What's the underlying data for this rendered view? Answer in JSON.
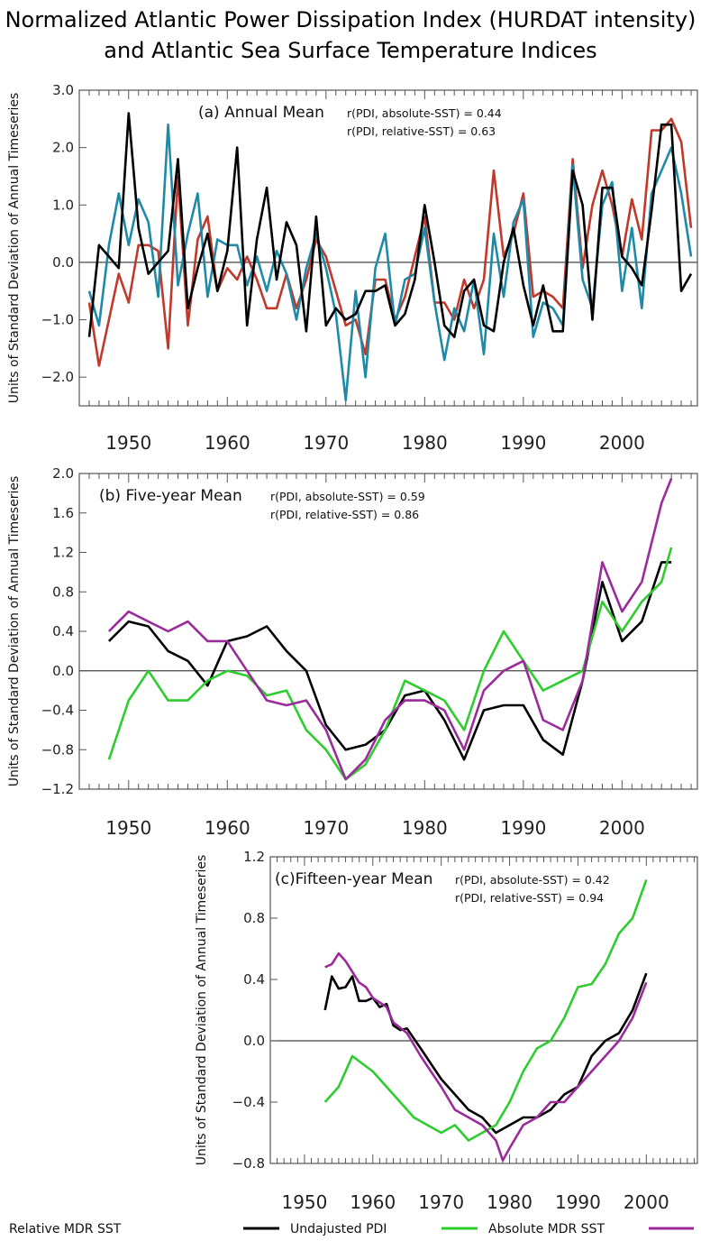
{
  "title": {
    "line1": "Normalized Atlantic Power Dissipation Index (HURDAT intensity)",
    "line2": "and Atlantic Sea Surface Temperature Indices"
  },
  "ylabel": "Units of Standard Deviation of Annual Timeseries",
  "legend": [
    {
      "label": "Undajusted PDI",
      "color": "#000000"
    },
    {
      "label": "Absolute MDR SST",
      "color": "#2ecc2e"
    },
    {
      "label": "Relative MDR SST",
      "color": "#9b2a9b"
    }
  ],
  "chart_data": [
    {
      "type": "line",
      "panel": "(a) Annual Mean",
      "corr1": "r(PDI, absolute-SST) = 0.44",
      "corr2": "r(PDI, relative-SST) = 0.63",
      "xlim": [
        1945,
        2008
      ],
      "ylim": [
        -2.5,
        3.0
      ],
      "yticks": [
        "3.0",
        "2.0",
        "1.0",
        "0.0",
        "−1.0",
        "−2.0"
      ],
      "ytick_values": [
        3,
        2,
        1,
        0,
        -1,
        -2
      ],
      "xticks": [
        "1950",
        "1960",
        "1970",
        "1980",
        "1990",
        "2000"
      ],
      "xtick_values": [
        1950,
        1960,
        1970,
        1980,
        1990,
        2000
      ],
      "x": [
        1946,
        1947,
        1948,
        1949,
        1950,
        1951,
        1952,
        1953,
        1954,
        1955,
        1956,
        1957,
        1958,
        1959,
        1960,
        1961,
        1962,
        1963,
        1964,
        1965,
        1966,
        1967,
        1968,
        1969,
        1970,
        1971,
        1972,
        1973,
        1974,
        1975,
        1976,
        1977,
        1978,
        1979,
        1980,
        1981,
        1982,
        1983,
        1984,
        1985,
        1986,
        1987,
        1988,
        1989,
        1990,
        1991,
        1992,
        1993,
        1994,
        1995,
        1996,
        1997,
        1998,
        1999,
        2000,
        2001,
        2002,
        2003,
        2004,
        2005,
        2006,
        2007
      ],
      "series": [
        {
          "color": "#c0392b",
          "values": [
            -0.7,
            -1.8,
            -1.0,
            -0.2,
            -0.7,
            0.3,
            0.3,
            0.2,
            -1.5,
            1.5,
            -1.1,
            0.4,
            0.8,
            -0.5,
            -0.1,
            -0.3,
            0.1,
            -0.3,
            -0.8,
            -0.8,
            -0.2,
            -0.8,
            -0.3,
            0.4,
            0.1,
            -0.5,
            -1.1,
            -1.0,
            -1.6,
            -0.3,
            -0.3,
            -1.0,
            -0.6,
            0.1,
            0.8,
            -0.7,
            -0.7,
            -1.0,
            -0.3,
            -0.8,
            -0.3,
            1.6,
            0.1,
            0.5,
            1.2,
            -0.6,
            -0.5,
            -0.6,
            -0.8,
            1.8,
            -0.1,
            1.0,
            1.6,
            1.0,
            0.1,
            1.1,
            0.4,
            2.3,
            2.3,
            2.5,
            2.1,
            0.6
          ]
        },
        {
          "color": "#1f8aa8",
          "values": [
            -0.5,
            -1.1,
            0.3,
            1.2,
            0.3,
            1.1,
            0.7,
            -0.6,
            2.4,
            -0.4,
            0.5,
            1.2,
            -0.6,
            0.4,
            0.3,
            0.3,
            -0.4,
            0.1,
            -0.5,
            0.2,
            -0.2,
            -1.0,
            -0.1,
            0.5,
            -0.1,
            -0.9,
            -2.4,
            -0.5,
            -2.0,
            -0.1,
            0.5,
            -1.1,
            -0.3,
            -0.2,
            0.6,
            -0.7,
            -1.7,
            -0.8,
            -1.2,
            -0.3,
            -1.6,
            0.5,
            -0.6,
            0.7,
            1.1,
            -1.3,
            -0.7,
            -0.8,
            -1.1,
            1.7,
            -0.3,
            -0.8,
            1.0,
            1.4,
            -0.5,
            0.6,
            -0.8,
            1.2,
            1.6,
            2.0,
            1.2,
            0.1
          ]
        },
        {
          "color": "#000000",
          "values": [
            -1.3,
            0.3,
            0.1,
            -0.1,
            2.6,
            0.6,
            -0.2,
            0.0,
            0.2,
            1.8,
            -0.8,
            -0.1,
            0.5,
            -0.5,
            0.2,
            2.0,
            -1.1,
            0.4,
            1.3,
            -0.3,
            0.7,
            0.3,
            -1.2,
            0.8,
            -1.1,
            -0.8,
            -1.0,
            -0.9,
            -0.5,
            -0.5,
            -0.4,
            -1.1,
            -0.9,
            -0.3,
            1.0,
            0.0,
            -1.1,
            -1.3,
            -0.5,
            -0.3,
            -1.1,
            -1.2,
            0.0,
            0.6,
            -0.4,
            -1.1,
            -0.4,
            -1.2,
            -1.2,
            1.6,
            1.0,
            -1.0,
            1.3,
            1.3,
            0.1,
            -0.1,
            -0.4,
            0.9,
            2.4,
            2.4,
            -0.5,
            -0.2
          ]
        }
      ]
    },
    {
      "type": "line",
      "panel": "(b) Five-year Mean",
      "corr1": "r(PDI, absolute-SST) = 0.59",
      "corr2": "r(PDI, relative-SST) = 0.86",
      "xlim": [
        1945,
        2008
      ],
      "ylim": [
        -1.2,
        2.0
      ],
      "yticks": [
        "2.0",
        "1.6",
        "1.2",
        "0.8",
        "0.4",
        "0.0",
        "−0.4",
        "−0.8",
        "−1.2"
      ],
      "ytick_values": [
        2.0,
        1.6,
        1.2,
        0.8,
        0.4,
        0.0,
        -0.4,
        -0.8,
        -1.2
      ],
      "xticks": [
        "1950",
        "1960",
        "1970",
        "1980",
        "1990",
        "2000"
      ],
      "xtick_values": [
        1950,
        1960,
        1970,
        1980,
        1990,
        2000
      ],
      "series": [
        {
          "name": "Undajusted PDI",
          "color": "#000000",
          "x": [
            1948,
            1950,
            1952,
            1954,
            1956,
            1958,
            1960,
            1962,
            1964,
            1966,
            1968,
            1970,
            1972,
            1974,
            1976,
            1978,
            1980,
            1982,
            1984,
            1986,
            1988,
            1990,
            1992,
            1994,
            1996,
            1998,
            2000,
            2002,
            2004,
            2005
          ],
          "values": [
            0.3,
            0.5,
            0.45,
            0.2,
            0.1,
            -0.15,
            0.3,
            0.35,
            0.45,
            0.2,
            0.0,
            -0.55,
            -0.8,
            -0.75,
            -0.6,
            -0.25,
            -0.2,
            -0.5,
            -0.9,
            -0.4,
            -0.35,
            -0.35,
            -0.7,
            -0.85,
            -0.1,
            0.9,
            0.3,
            0.5,
            1.1,
            1.1
          ]
        },
        {
          "name": "Absolute MDR SST",
          "color": "#2ecc2e",
          "x": [
            1948,
            1950,
            1952,
            1954,
            1956,
            1958,
            1960,
            1962,
            1964,
            1966,
            1968,
            1970,
            1972,
            1974,
            1976,
            1978,
            1980,
            1982,
            1984,
            1986,
            1988,
            1990,
            1992,
            1994,
            1996,
            1998,
            2000,
            2002,
            2004,
            2005
          ],
          "values": [
            -0.9,
            -0.3,
            0.0,
            -0.3,
            -0.3,
            -0.1,
            0.0,
            -0.05,
            -0.25,
            -0.2,
            -0.6,
            -0.8,
            -1.1,
            -0.95,
            -0.6,
            -0.1,
            -0.2,
            -0.3,
            -0.6,
            0.0,
            0.4,
            0.1,
            -0.2,
            -0.1,
            0.0,
            0.7,
            0.4,
            0.7,
            0.9,
            1.25
          ]
        },
        {
          "name": "Relative MDR SST",
          "color": "#9b2a9b",
          "x": [
            1948,
            1950,
            1952,
            1954,
            1956,
            1958,
            1960,
            1962,
            1964,
            1966,
            1968,
            1970,
            1972,
            1974,
            1976,
            1978,
            1980,
            1982,
            1984,
            1986,
            1988,
            1990,
            1992,
            1994,
            1996,
            1998,
            2000,
            2002,
            2004,
            2005
          ],
          "values": [
            0.4,
            0.6,
            0.5,
            0.4,
            0.5,
            0.3,
            0.3,
            0.0,
            -0.3,
            -0.35,
            -0.3,
            -0.6,
            -1.1,
            -0.9,
            -0.5,
            -0.3,
            -0.3,
            -0.4,
            -0.8,
            -0.2,
            0.0,
            0.1,
            -0.5,
            -0.6,
            -0.1,
            1.1,
            0.6,
            0.9,
            1.7,
            1.95
          ]
        }
      ]
    },
    {
      "type": "line",
      "panel": "(c)Fifteen-year Mean",
      "corr1": "r(PDI, absolute-SST) = 0.42",
      "corr2": "r(PDI, relative-SST) = 0.94",
      "xlim": [
        1945,
        2008
      ],
      "ylim": [
        -0.8,
        1.2
      ],
      "yticks": [
        "1.2",
        "0.8",
        "0.4",
        "0.0",
        "−0.4",
        "−0.8"
      ],
      "ytick_values": [
        1.2,
        0.8,
        0.4,
        0.0,
        -0.4,
        -0.8
      ],
      "xticks": [
        "1950",
        "1960",
        "1970",
        "1980",
        "1990",
        "2000"
      ],
      "xtick_values": [
        1950,
        1960,
        1970,
        1980,
        1990,
        2000
      ],
      "series": [
        {
          "name": "Undajusted PDI",
          "color": "#000000",
          "x": [
            1953,
            1954,
            1955,
            1956,
            1957,
            1958,
            1959,
            1960,
            1961,
            1962,
            1963,
            1964,
            1965,
            1967,
            1970,
            1972,
            1974,
            1976,
            1978,
            1980,
            1982,
            1984,
            1986,
            1988,
            1990,
            1992,
            1994,
            1996,
            1998,
            2000
          ],
          "values": [
            0.2,
            0.42,
            0.34,
            0.35,
            0.42,
            0.26,
            0.26,
            0.28,
            0.22,
            0.24,
            0.1,
            0.07,
            0.08,
            -0.05,
            -0.25,
            -0.35,
            -0.45,
            -0.5,
            -0.6,
            -0.55,
            -0.5,
            -0.5,
            -0.45,
            -0.35,
            -0.3,
            -0.1,
            0.0,
            0.05,
            0.2,
            0.44
          ]
        },
        {
          "name": "Absolute MDR SST",
          "color": "#2ecc2e",
          "x": [
            1953,
            1955,
            1957,
            1960,
            1963,
            1966,
            1968,
            1970,
            1972,
            1974,
            1976,
            1978,
            1980,
            1982,
            1984,
            1986,
            1988,
            1990,
            1992,
            1994,
            1996,
            1998,
            2000
          ],
          "values": [
            -0.4,
            -0.3,
            -0.1,
            -0.2,
            -0.35,
            -0.5,
            -0.55,
            -0.6,
            -0.55,
            -0.65,
            -0.6,
            -0.55,
            -0.4,
            -0.2,
            -0.05,
            0.0,
            0.15,
            0.35,
            0.37,
            0.5,
            0.7,
            0.8,
            1.05
          ]
        },
        {
          "name": "Relative MDR SST",
          "color": "#9b2a9b",
          "x": [
            1953,
            1954,
            1955,
            1956,
            1957,
            1958,
            1959,
            1960,
            1961,
            1962,
            1963,
            1965,
            1967,
            1970,
            1972,
            1974,
            1976,
            1978,
            1979,
            1980,
            1982,
            1984,
            1986,
            1988,
            1990,
            1992,
            1994,
            1996,
            1998,
            2000
          ],
          "values": [
            0.48,
            0.5,
            0.57,
            0.52,
            0.45,
            0.38,
            0.35,
            0.28,
            0.25,
            0.22,
            0.12,
            0.05,
            -0.1,
            -0.3,
            -0.45,
            -0.5,
            -0.55,
            -0.65,
            -0.78,
            -0.7,
            -0.55,
            -0.5,
            -0.4,
            -0.4,
            -0.3,
            -0.2,
            -0.1,
            0.0,
            0.15,
            0.38
          ]
        }
      ]
    }
  ]
}
